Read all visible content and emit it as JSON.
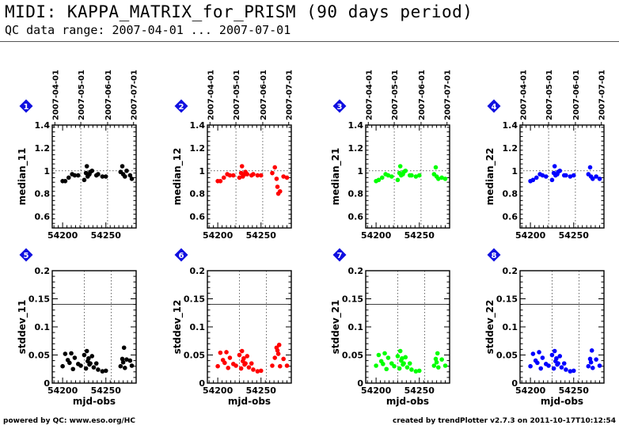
{
  "header": {
    "title": "MIDI: KAPPA_MATRIX_for_PRISM (90 days period)",
    "subtitle": "QC data range: 2007-04-01 ... 2007-07-01"
  },
  "footer": {
    "left": "powered by QC: www.eso.org/HC",
    "right": "created by trendPlotter v2.7.3 on 2011-10-17T10:12:54"
  },
  "colors": {
    "black": "#000000",
    "red": "#ff0000",
    "green": "#00ff00",
    "blue": "#0000ff",
    "badge": "#1010e0"
  },
  "chart_data": [
    {
      "type": "scatter",
      "panel": "1",
      "ylabel": "median_11",
      "color": "#000000",
      "xlim": [
        54188,
        54285
      ],
      "ylim": [
        0.5,
        1.4
      ],
      "yticks": [
        "0.6",
        "0.8",
        "1",
        "1.2",
        "1.4"
      ],
      "xticks": [
        "54200",
        "54250"
      ],
      "date_ticks": [
        "2007-04-01",
        "2007-05-01",
        "2007-06-01",
        "2007-07-01"
      ],
      "x": [
        54200,
        54203,
        54207,
        54211,
        54214,
        54218,
        54225,
        54227,
        54228,
        54229,
        54231,
        54232,
        54234,
        54239,
        54241,
        54246,
        54250,
        54267,
        54269,
        54270,
        54272,
        54274,
        54278,
        54280
      ],
      "y": [
        0.91,
        0.91,
        0.94,
        0.97,
        0.96,
        0.96,
        0.92,
        0.98,
        1.04,
        0.95,
        0.97,
        0.99,
        1.0,
        0.96,
        0.97,
        0.95,
        0.95,
        0.99,
        1.04,
        0.97,
        0.95,
        1.0,
        0.96,
        0.93
      ]
    },
    {
      "type": "scatter",
      "panel": "2",
      "ylabel": "median_12",
      "color": "#ff0000",
      "xlim": [
        54188,
        54285
      ],
      "ylim": [
        0.5,
        1.4
      ],
      "yticks": [
        "0.6",
        "0.8",
        "1",
        "1.2",
        "1.4"
      ],
      "xticks": [
        "54200",
        "54250"
      ],
      "date_ticks": [
        "2007-04-01",
        "2007-05-01",
        "2007-06-01",
        "2007-07-01"
      ],
      "x": [
        54200,
        54203,
        54207,
        54211,
        54214,
        54218,
        54225,
        54227,
        54228,
        54229,
        54231,
        54232,
        54234,
        54239,
        54241,
        54246,
        54250,
        54263,
        54266,
        54268,
        54269,
        54270,
        54272,
        54276,
        54280
      ],
      "y": [
        0.91,
        0.91,
        0.94,
        0.97,
        0.96,
        0.96,
        0.94,
        0.98,
        1.04,
        0.95,
        0.97,
        0.99,
        0.97,
        0.96,
        0.97,
        0.96,
        0.96,
        0.98,
        1.03,
        0.93,
        0.86,
        0.8,
        0.82,
        0.95,
        0.94
      ]
    },
    {
      "type": "scatter",
      "panel": "3",
      "ylabel": "median_21",
      "color": "#00ff00",
      "xlim": [
        54188,
        54285
      ],
      "ylim": [
        0.5,
        1.4
      ],
      "yticks": [
        "0.6",
        "0.8",
        "1",
        "1.2",
        "1.4"
      ],
      "xticks": [
        "54200",
        "54250"
      ],
      "date_ticks": [
        "2007-04-01",
        "2007-05-01",
        "2007-06-01",
        "2007-07-01"
      ],
      "x": [
        54200,
        54203,
        54207,
        54211,
        54214,
        54218,
        54225,
        54227,
        54228,
        54229,
        54231,
        54232,
        54234,
        54239,
        54241,
        54246,
        54250,
        54267,
        54269,
        54270,
        54272,
        54276,
        54280
      ],
      "y": [
        0.91,
        0.92,
        0.94,
        0.97,
        0.96,
        0.95,
        0.92,
        0.98,
        1.04,
        0.96,
        0.97,
        0.99,
        1.0,
        0.96,
        0.96,
        0.95,
        0.96,
        0.97,
        1.03,
        0.95,
        0.93,
        0.94,
        0.93
      ]
    },
    {
      "type": "scatter",
      "panel": "4",
      "ylabel": "median_22",
      "color": "#0000ff",
      "xlim": [
        54188,
        54285
      ],
      "ylim": [
        0.5,
        1.4
      ],
      "yticks": [
        "0.6",
        "0.8",
        "1",
        "1.2",
        "1.4"
      ],
      "xticks": [
        "54200",
        "54250"
      ],
      "date_ticks": [
        "2007-04-01",
        "2007-05-01",
        "2007-06-01",
        "2007-07-01"
      ],
      "x": [
        54200,
        54203,
        54207,
        54211,
        54214,
        54218,
        54225,
        54227,
        54228,
        54229,
        54231,
        54232,
        54234,
        54239,
        54241,
        54246,
        54250,
        54267,
        54269,
        54270,
        54272,
        54276,
        54280
      ],
      "y": [
        0.91,
        0.92,
        0.94,
        0.97,
        0.96,
        0.95,
        0.92,
        0.98,
        1.04,
        0.96,
        0.97,
        0.99,
        1.0,
        0.96,
        0.96,
        0.95,
        0.96,
        0.97,
        1.03,
        0.95,
        0.93,
        0.95,
        0.93
      ]
    },
    {
      "type": "scatter",
      "panel": "5",
      "ylabel": "stddev_11",
      "xlabel": "mjd-obs",
      "color": "#000000",
      "xlim": [
        54188,
        54285
      ],
      "ylim": [
        0,
        0.2
      ],
      "yticks": [
        "0",
        "0.05",
        "0.1",
        "0.15",
        "0.2"
      ],
      "xticks": [
        "54200",
        "54250"
      ],
      "hline": 0.14,
      "x": [
        54200,
        54203,
        54206,
        54208,
        54210,
        54212,
        54214,
        54218,
        54221,
        54225,
        54227,
        54228,
        54229,
        54230,
        54231,
        54232,
        54234,
        54236,
        54239,
        54241,
        54246,
        54250,
        54267,
        54269,
        54270,
        54271,
        54272,
        54274,
        54278,
        54280
      ],
      "y": [
        0.03,
        0.052,
        0.041,
        0.036,
        0.053,
        0.025,
        0.045,
        0.034,
        0.031,
        0.05,
        0.026,
        0.057,
        0.039,
        0.044,
        0.033,
        0.035,
        0.048,
        0.028,
        0.035,
        0.024,
        0.021,
        0.022,
        0.03,
        0.043,
        0.037,
        0.063,
        0.027,
        0.042,
        0.04,
        0.031
      ]
    },
    {
      "type": "scatter",
      "panel": "6",
      "ylabel": "stddev_12",
      "xlabel": "mjd-obs",
      "color": "#ff0000",
      "xlim": [
        54188,
        54285
      ],
      "ylim": [
        0,
        0.2
      ],
      "yticks": [
        "0",
        "0.05",
        "0.1",
        "0.15",
        "0.2"
      ],
      "xticks": [
        "54200",
        "54250"
      ],
      "hline": 0.14,
      "x": [
        54200,
        54203,
        54206,
        54208,
        54210,
        54212,
        54214,
        54218,
        54221,
        54225,
        54227,
        54228,
        54229,
        54230,
        54231,
        54232,
        54234,
        54236,
        54239,
        54241,
        54246,
        54250,
        54263,
        54266,
        54268,
        54269,
        54270,
        54271,
        54272,
        54276,
        54280
      ],
      "y": [
        0.03,
        0.054,
        0.041,
        0.036,
        0.055,
        0.027,
        0.045,
        0.034,
        0.031,
        0.05,
        0.026,
        0.057,
        0.039,
        0.044,
        0.033,
        0.035,
        0.048,
        0.028,
        0.035,
        0.024,
        0.021,
        0.022,
        0.031,
        0.045,
        0.063,
        0.058,
        0.052,
        0.068,
        0.03,
        0.043,
        0.031
      ]
    },
    {
      "type": "scatter",
      "panel": "7",
      "ylabel": "stddev_21",
      "xlabel": "mjd-obs",
      "color": "#00ff00",
      "xlim": [
        54188,
        54285
      ],
      "ylim": [
        0,
        0.2
      ],
      "yticks": [
        "0",
        "0.05",
        "0.1",
        "0.15",
        "0.2"
      ],
      "xticks": [
        "54200",
        "54250"
      ],
      "hline": 0.14,
      "x": [
        54200,
        54203,
        54206,
        54208,
        54210,
        54212,
        54214,
        54218,
        54221,
        54225,
        54227,
        54228,
        54229,
        54230,
        54231,
        54232,
        54234,
        54236,
        54239,
        54241,
        54246,
        54250,
        54267,
        54269,
        54270,
        54271,
        54272,
        54276,
        54280
      ],
      "y": [
        0.031,
        0.05,
        0.039,
        0.034,
        0.053,
        0.025,
        0.045,
        0.035,
        0.03,
        0.048,
        0.026,
        0.057,
        0.04,
        0.044,
        0.033,
        0.035,
        0.046,
        0.028,
        0.035,
        0.024,
        0.021,
        0.022,
        0.031,
        0.043,
        0.037,
        0.053,
        0.028,
        0.042,
        0.031
      ]
    },
    {
      "type": "scatter",
      "panel": "8",
      "ylabel": "stddev_22",
      "xlabel": "mjd-obs",
      "color": "#0000ff",
      "xlim": [
        54188,
        54285
      ],
      "ylim": [
        0,
        0.2
      ],
      "yticks": [
        "0",
        "0.05",
        "0.1",
        "0.15",
        "0.2"
      ],
      "xticks": [
        "54200",
        "54250"
      ],
      "hline": 0.14,
      "x": [
        54200,
        54203,
        54206,
        54208,
        54210,
        54212,
        54214,
        54218,
        54221,
        54225,
        54227,
        54228,
        54229,
        54230,
        54231,
        54232,
        54234,
        54236,
        54239,
        54241,
        54246,
        54250,
        54267,
        54269,
        54270,
        54271,
        54272,
        54276,
        54280
      ],
      "y": [
        0.03,
        0.052,
        0.04,
        0.036,
        0.055,
        0.026,
        0.045,
        0.034,
        0.031,
        0.05,
        0.026,
        0.057,
        0.039,
        0.044,
        0.033,
        0.035,
        0.048,
        0.028,
        0.035,
        0.024,
        0.021,
        0.022,
        0.03,
        0.043,
        0.037,
        0.058,
        0.027,
        0.042,
        0.031
      ]
    }
  ]
}
